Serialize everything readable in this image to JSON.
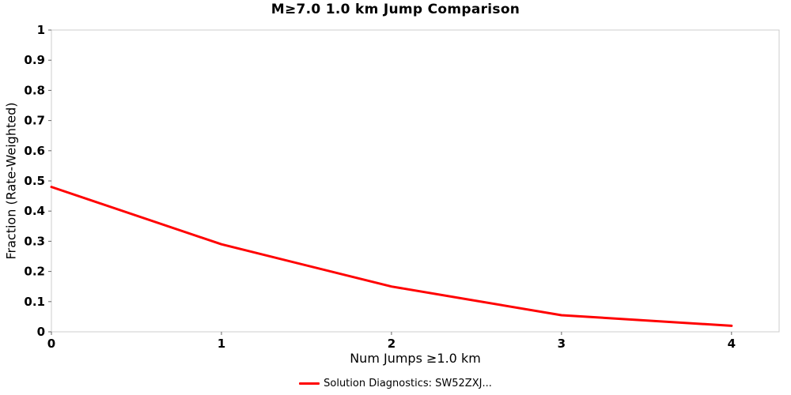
{
  "chart_data": {
    "type": "line",
    "title": "M≥7.0 1.0 km Jump Comparison",
    "xlabel": "Num Jumps ≥1.0 km",
    "ylabel": "Fraction (Rate-Weighted)",
    "x": [
      0,
      1,
      2,
      3,
      4
    ],
    "series": [
      {
        "name": "Solution Diagnostics: SW52ZXJ...",
        "values": [
          0.48,
          0.29,
          0.15,
          0.055,
          0.02
        ],
        "color": "#ff0000"
      }
    ],
    "xlim": [
      0,
      4.28
    ],
    "ylim": [
      0,
      1
    ],
    "x_ticks": [
      "0",
      "1",
      "2",
      "3",
      "4"
    ],
    "y_ticks": [
      "0",
      "0.1",
      "0.2",
      "0.3",
      "0.4",
      "0.5",
      "0.6",
      "0.7",
      "0.8",
      "0.9",
      "1"
    ],
    "grid": false,
    "legend_position": "bottom"
  },
  "colors": {
    "line": "#ff0000",
    "plot_border": "#cccccc",
    "tick_mark": "#666666",
    "text": "#000000"
  }
}
